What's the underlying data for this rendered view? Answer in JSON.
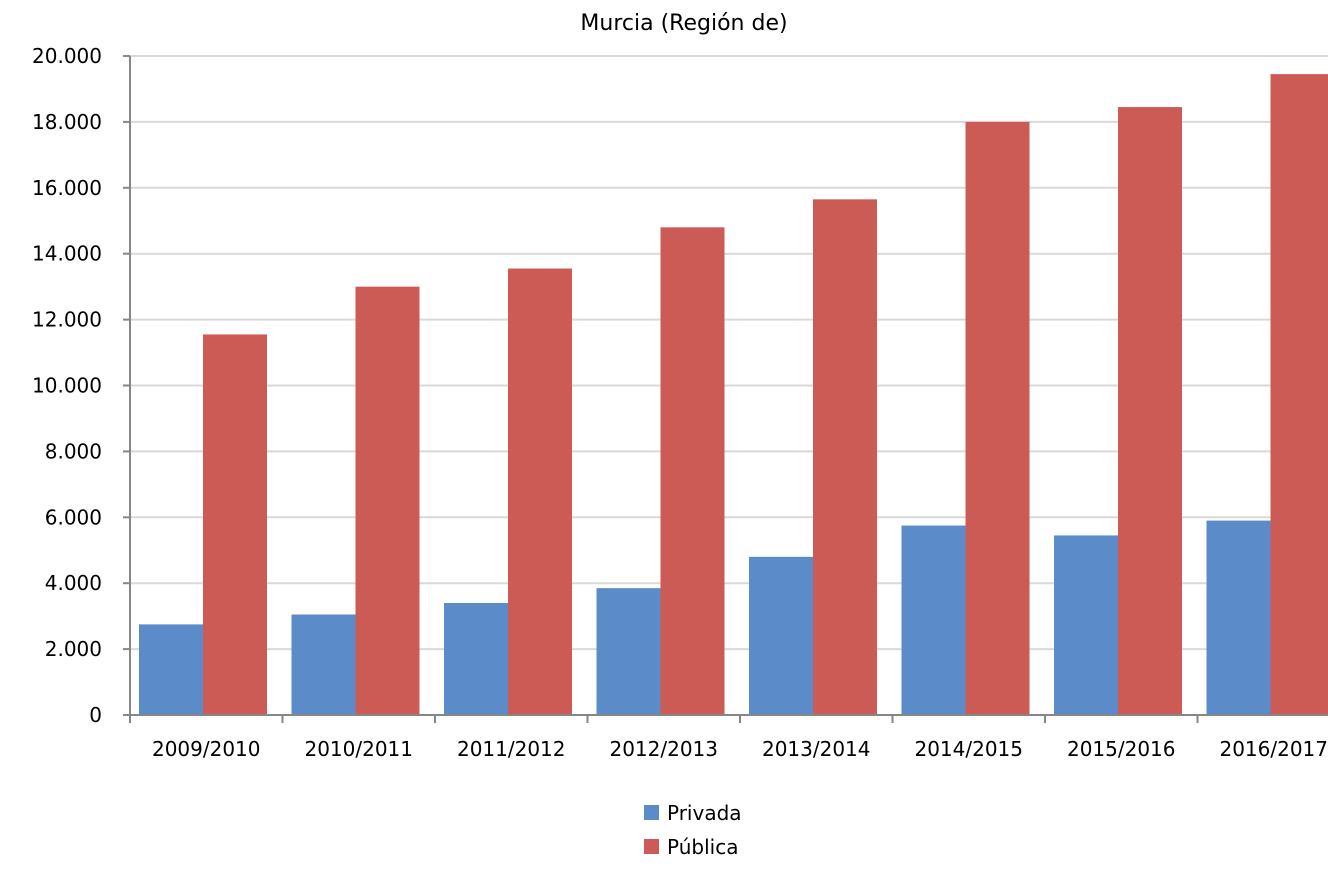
{
  "chart_data": {
    "type": "bar",
    "title": "Murcia (Región de)",
    "xlabel": "",
    "ylabel": "",
    "categories": [
      "2009/2010",
      "2010/2011",
      "2011/2012",
      "2012/2013",
      "2013/2014",
      "2014/2015",
      "2015/2016",
      "2016/2017"
    ],
    "series": [
      {
        "name": "Privada",
        "color": "#5b8bc9",
        "values": [
          2750,
          3050,
          3400,
          3850,
          4800,
          5750,
          5450,
          5900
        ]
      },
      {
        "name": "Pública",
        "color": "#cd5b55",
        "values": [
          11550,
          13000,
          13550,
          14800,
          15650,
          18000,
          18450,
          19450
        ]
      }
    ],
    "ylim": [
      0,
      20000
    ],
    "yticks": [
      0,
      2000,
      4000,
      6000,
      8000,
      10000,
      12000,
      14000,
      16000,
      18000,
      20000
    ],
    "ytick_labels": [
      "0",
      "2.000",
      "4.000",
      "6.000",
      "8.000",
      "10.000",
      "12.000",
      "14.000",
      "16.000",
      "18.000",
      "20.000"
    ],
    "grid": true,
    "legend_position": "bottom"
  }
}
